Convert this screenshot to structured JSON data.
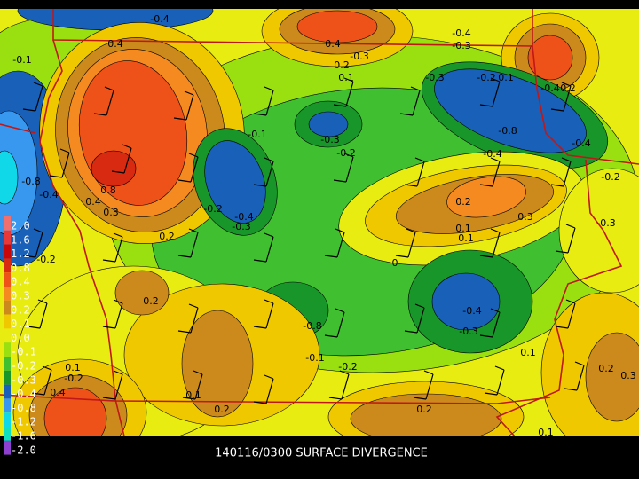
{
  "title": "140116/0300 SURFACE DIVERGENCE",
  "legend": {
    "levels": [
      {
        "label": "2.0",
        "color": "#f07070"
      },
      {
        "label": "1.6",
        "color": "#e83838"
      },
      {
        "label": "1.2",
        "color": "#c80808"
      },
      {
        "label": "0.8",
        "color": "#d82a10"
      },
      {
        "label": "0.4",
        "color": "#ee5218"
      },
      {
        "label": "0.3",
        "color": "#f48a20"
      },
      {
        "label": "0.2",
        "color": "#cc8a1c"
      },
      {
        "label": "0.1",
        "color": "#f0c800"
      },
      {
        "label": "0.0",
        "color": "#e8ec10"
      },
      {
        "label": "-0.1",
        "color": "#9ae010"
      },
      {
        "label": "-0.2",
        "color": "#40c030"
      },
      {
        "label": "-0.3",
        "color": "#18962a"
      },
      {
        "label": "-0.4",
        "color": "#1860b8"
      },
      {
        "label": "-0.8",
        "color": "#3898f0"
      },
      {
        "label": "-1.2",
        "color": "#10d8e8"
      },
      {
        "label": "-1.6",
        "color": "#10e0c0"
      },
      {
        "label": "-2.0",
        "color": "#9040d0"
      }
    ]
  },
  "contour_labels": [
    -0.4,
    -0.1,
    0.4,
    0.4,
    0.2,
    -0.3,
    0.1,
    -0.4,
    -0.3,
    -0.3,
    -0.2,
    0.1,
    -0.4,
    0.2,
    -0.8,
    -0.4,
    -0.4,
    -0.1,
    -0.3,
    -0.2,
    -0.8,
    -0.4,
    0.8,
    0.4,
    0.3,
    -0.2,
    -0.4,
    -0.3,
    0.2,
    0.3,
    0.1,
    0.1,
    0,
    0.2,
    -0.3,
    -0.2,
    0.2,
    -0.2,
    -0.8,
    -0.4,
    -0.3,
    -0.1,
    -0.2,
    0.1,
    0.2,
    0.3,
    0.1,
    -0.2,
    0.4,
    0.1,
    0.2,
    0.2,
    0.1
  ]
}
